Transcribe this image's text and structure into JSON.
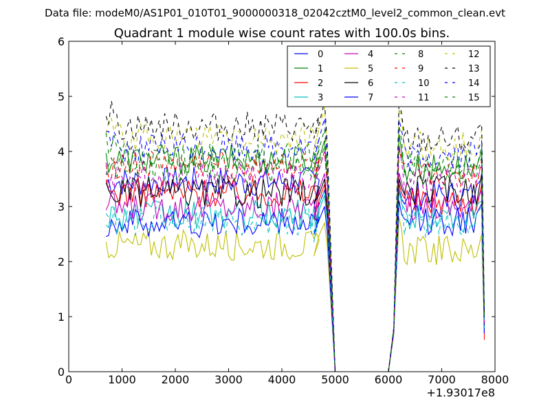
{
  "figure": {
    "suptitle": "Data file: modeM0/AS1P01_010T01_9000000318_02042cztM0_level2_common_clean.evt",
    "offset_label": "+1.93017e8"
  },
  "chart_data": {
    "type": "line",
    "title": "Quadrant 1 module wise count rates with 100.0s bins.",
    "xlabel": "",
    "ylabel": "",
    "xlim": [
      0,
      8000
    ],
    "ylim": [
      0,
      6
    ],
    "x_offset": 193017000,
    "bin_seconds": 100.0,
    "grid": false,
    "legend_position": "top-right",
    "x_ticks": [
      0,
      1000,
      2000,
      3000,
      4000,
      5000,
      6000,
      7000,
      8000
    ],
    "y_ticks": [
      0,
      1,
      2,
      3,
      4,
      5,
      6
    ],
    "segments": {
      "seg1_x_start": 700,
      "seg1_x_end": 4900,
      "gap_x_start": 5000,
      "gap_x_end": 6000,
      "seg2_x_start": 6100,
      "seg2_x_end": 7800
    },
    "series": [
      {
        "name": "0",
        "color": "#0000ff",
        "dash": "solid",
        "level1": 3.45,
        "level2": 3.2,
        "spike": 3.3,
        "end": 0.85
      },
      {
        "name": "1",
        "color": "#008000",
        "dash": "solid",
        "level1": 3.85,
        "level2": 3.7,
        "spike": 4.2,
        "end": 0.9
      },
      {
        "name": "2",
        "color": "#ff0000",
        "dash": "solid",
        "level1": 3.25,
        "level2": 3.1,
        "spike": 3.4,
        "end": 0.58
      },
      {
        "name": "3",
        "color": "#00bfbf",
        "dash": "solid",
        "level1": 2.85,
        "level2": 2.8,
        "spike": 3.2,
        "end": 0.75
      },
      {
        "name": "4",
        "color": "#bf00bf",
        "dash": "solid",
        "level1": 3.0,
        "level2": 3.0,
        "spike": 3.6,
        "end": 0.8
      },
      {
        "name": "5",
        "color": "#bfbf00",
        "dash": "solid",
        "level1": 2.3,
        "level2": 2.2,
        "spike": 2.7,
        "end": 0.7
      },
      {
        "name": "6",
        "color": "#000000",
        "dash": "solid",
        "level1": 3.25,
        "level2": 3.3,
        "spike": 3.5,
        "end": 0.8
      },
      {
        "name": "7",
        "color": "#0000ff",
        "dash": "solid",
        "level1": 2.7,
        "level2": 2.75,
        "spike": 3.0,
        "end": 0.7
      },
      {
        "name": "8",
        "color": "#008000",
        "dash": "dashed",
        "level1": 3.7,
        "level2": 3.6,
        "spike": 4.1,
        "end": 0.9
      },
      {
        "name": "9",
        "color": "#ff0000",
        "dash": "dashed",
        "level1": 3.75,
        "level2": 3.55,
        "spike": 4.0,
        "end": 0.9
      },
      {
        "name": "10",
        "color": "#00bfbf",
        "dash": "dashed",
        "level1": 2.75,
        "level2": 2.7,
        "spike": 3.3,
        "end": 0.8
      },
      {
        "name": "11",
        "color": "#bf00bf",
        "dash": "dashed",
        "level1": 3.55,
        "level2": 3.45,
        "spike": 4.0,
        "end": 0.9
      },
      {
        "name": "12",
        "color": "#bfbf00",
        "dash": "dashed",
        "level1": 4.25,
        "level2": 4.1,
        "spike": 4.8,
        "end": 1.0
      },
      {
        "name": "13",
        "color": "#000000",
        "dash": "dashed",
        "level1": 4.45,
        "level2": 4.2,
        "spike": 4.9,
        "end": 1.0
      },
      {
        "name": "14",
        "color": "#0000ff",
        "dash": "dashed",
        "level1": 4.05,
        "level2": 3.9,
        "spike": 4.6,
        "end": 0.95
      },
      {
        "name": "15",
        "color": "#008000",
        "dash": "dashed",
        "level1": 3.9,
        "level2": 3.8,
        "spike": 4.4,
        "end": 0.95
      }
    ]
  }
}
